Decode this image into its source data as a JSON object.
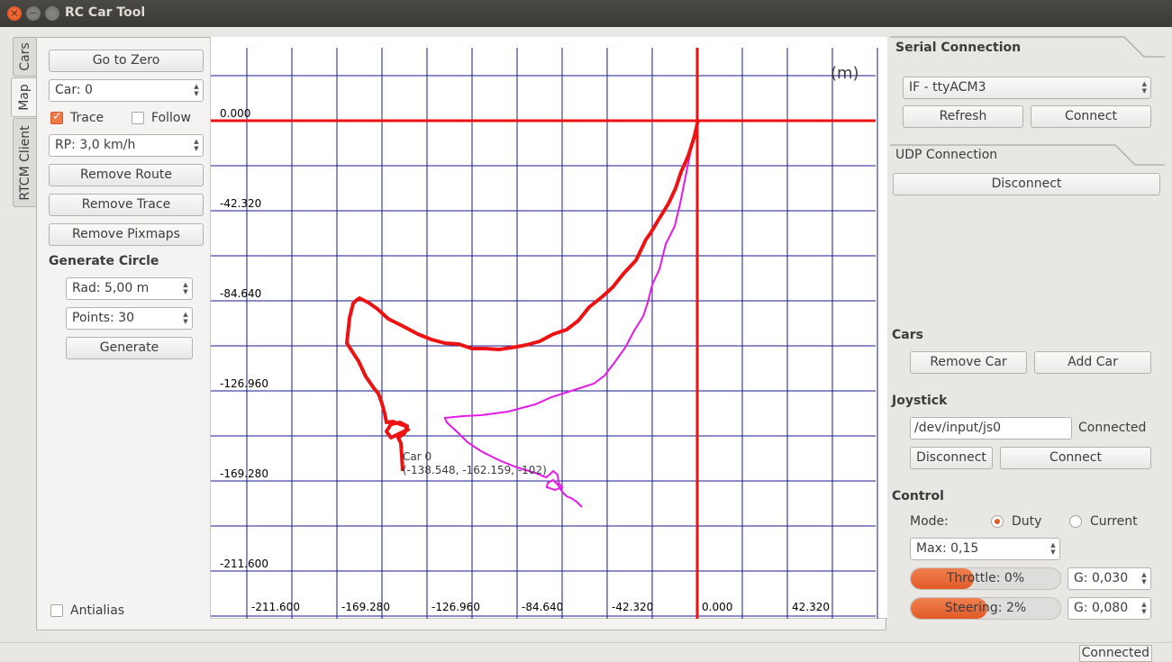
{
  "window": {
    "title": "RC Car Tool"
  },
  "tabs": [
    "Cars",
    "Map",
    "RTCM Client"
  ],
  "left": {
    "go_to_zero": "Go to Zero",
    "car_spin": "Car: 0",
    "trace_label": "Trace",
    "trace_checked": true,
    "follow_label": "Follow",
    "follow_checked": false,
    "rp_spin": "RP: 3,0 km/h",
    "remove_route": "Remove Route",
    "remove_trace": "Remove Trace",
    "remove_pixmaps": "Remove Pixmaps",
    "generate_circle_title": "Generate Circle",
    "rad_spin": "Rad: 5,00 m",
    "points_spin": "Points: 30",
    "generate": "Generate",
    "antialias_label": "Antialias",
    "antialias_checked": false
  },
  "map": {
    "unit_label": "(m)",
    "y_ticks": [
      "0.000",
      "-42.320",
      "-84.640",
      "-126.960",
      "-169.280",
      "-211.600"
    ],
    "x_ticks": [
      "-211.600",
      "-169.280",
      "-126.960",
      "-84.640",
      "-42.320",
      "0.000",
      "42.320"
    ],
    "car_label": "Car 0",
    "car_coords": "(-138.548, -162.159, -102)",
    "colors": {
      "grid": "#1a1a8c",
      "axis": "#ee1111",
      "trace": "#ee1111",
      "route": "#e619e6"
    }
  },
  "serial": {
    "title": "Serial Connection",
    "port": "IF - ttyACM3",
    "refresh": "Refresh",
    "connect": "Connect"
  },
  "udp": {
    "title": "UDP Connection",
    "disconnect": "Disconnect"
  },
  "cars": {
    "title": "Cars",
    "remove_car": "Remove Car",
    "add_car": "Add Car"
  },
  "joystick": {
    "title": "Joystick",
    "device": "/dev/input/js0",
    "status": "Connected",
    "disconnect": "Disconnect",
    "connect": "Connect"
  },
  "control": {
    "title": "Control",
    "mode_label": "Mode:",
    "duty_label": "Duty",
    "current_label": "Current",
    "max_spin": "Max: 0,15",
    "throttle_text": "Throttle: 0%",
    "throttle_fill": 0.42,
    "throttle_gain": "G: 0,030",
    "steering_text": "Steering: 2%",
    "steering_fill": 0.51,
    "steering_gain": "G: 0,080"
  },
  "status": {
    "connection": "Connected"
  }
}
